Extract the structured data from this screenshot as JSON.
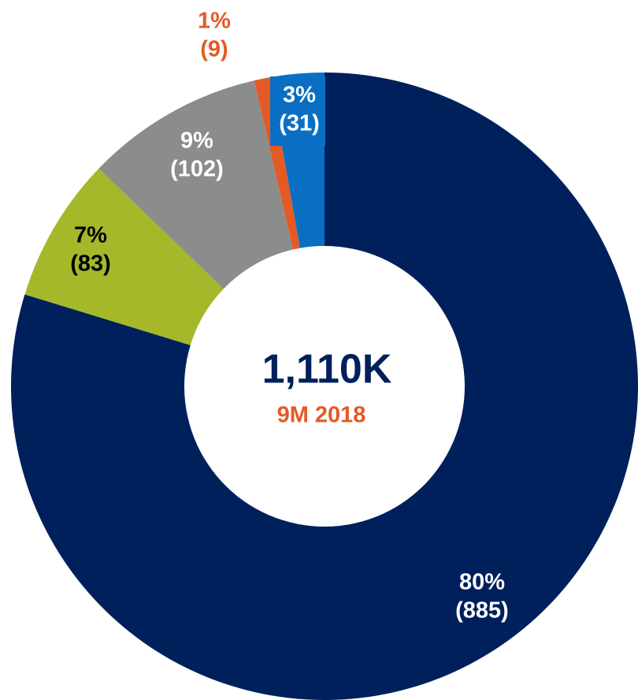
{
  "chart_data": {
    "type": "donut",
    "center_label": "1,110K",
    "center_sublabel": "9M 2018",
    "categories": [
      null,
      null,
      null,
      null,
      null
    ],
    "values": [
      885,
      83,
      102,
      9,
      31
    ],
    "value_labels": [
      "(885)",
      "(83)",
      "(102)",
      "(9)",
      "(31)"
    ],
    "percent_labels": [
      "80%",
      "7%",
      "9%",
      "1%",
      "3%"
    ],
    "colors": [
      "#00205b",
      "#a5b82a",
      "#8c8c8c",
      "#e35a24",
      "#0a6fc2"
    ]
  }
}
